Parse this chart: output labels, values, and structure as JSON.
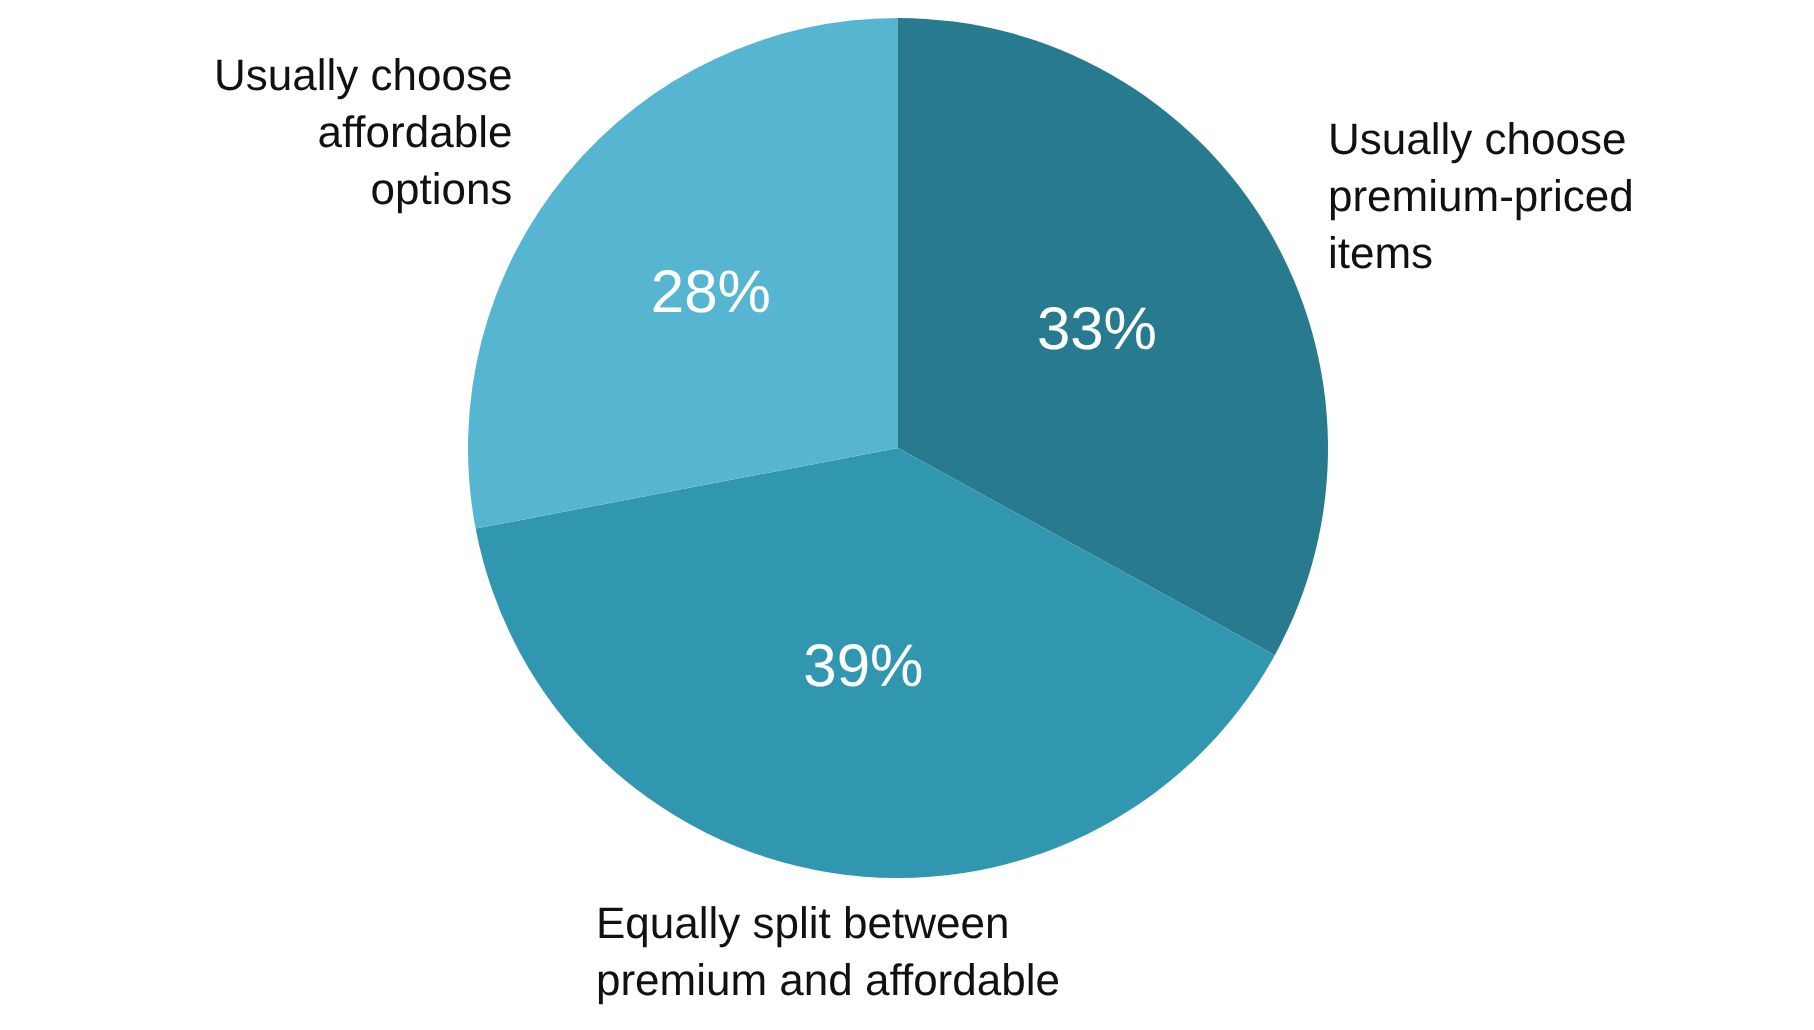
{
  "chart_data": {
    "type": "pie",
    "categories": [
      "Usually choose\npremium-priced\nitems",
      "Equally split between\npremium and affordable",
      "Usually choose\naffordable\noptions"
    ],
    "values": [
      33,
      39,
      28
    ],
    "value_labels": [
      "33%",
      "39%",
      "28%"
    ],
    "colors": [
      "#287a8e",
      "#3197b0",
      "#56b6d2"
    ]
  }
}
